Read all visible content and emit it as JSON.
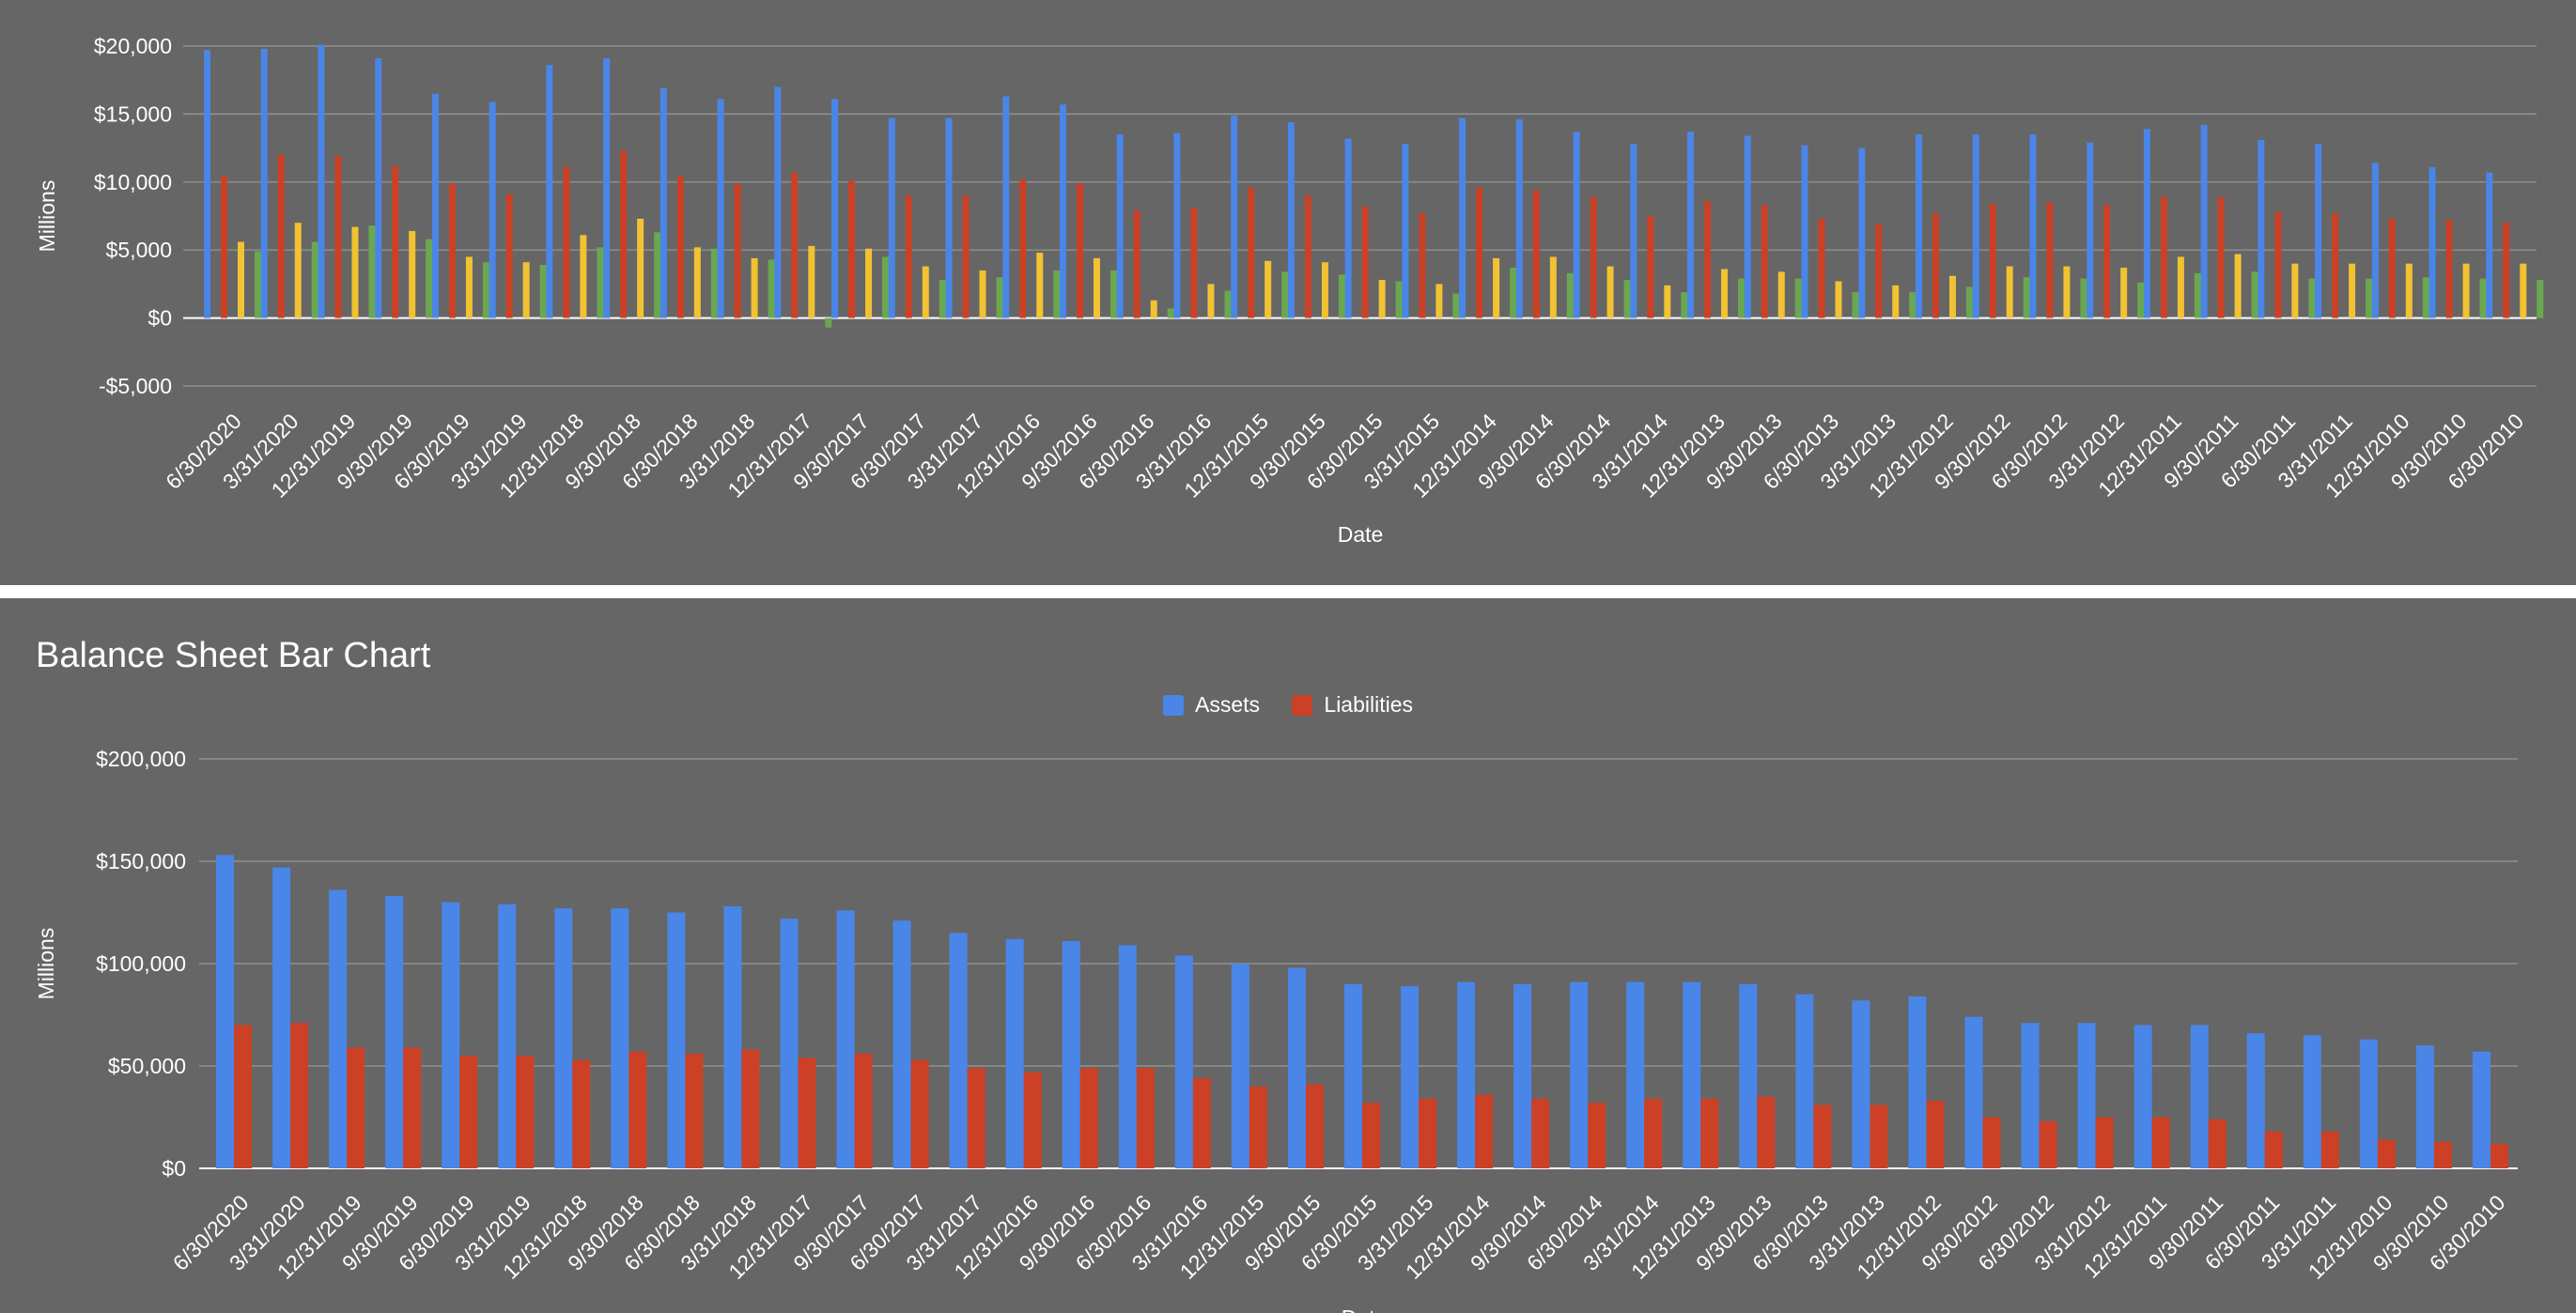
{
  "chart_data": [
    {
      "type": "bar",
      "title": "",
      "xlabel": "Date",
      "ylabel": "Millions",
      "ylim": [
        -5000,
        20000
      ],
      "yticks": [
        {
          "value": 20000,
          "label": "$20,000"
        },
        {
          "value": 15000,
          "label": "$15,000"
        },
        {
          "value": 10000,
          "label": "$10,000"
        },
        {
          "value": 5000,
          "label": "$5,000"
        },
        {
          "value": 0,
          "label": "$0"
        },
        {
          "value": -5000,
          "label": "-$5,000"
        }
      ],
      "grid": true,
      "legend": "none",
      "categories": [
        "6/30/2020",
        "3/31/2020",
        "12/31/2019",
        "9/30/2019",
        "6/30/2019",
        "3/31/2019",
        "12/31/2018",
        "9/30/2018",
        "6/30/2018",
        "3/31/2018",
        "12/31/2017",
        "9/30/2017",
        "6/30/2017",
        "3/31/2017",
        "12/31/2016",
        "9/30/2016",
        "6/30/2016",
        "3/31/2016",
        "12/31/2015",
        "9/30/2015",
        "6/30/2015",
        "3/31/2015",
        "12/31/2014",
        "9/30/2014",
        "6/30/2014",
        "3/31/2014",
        "12/31/2013",
        "9/30/2013",
        "6/30/2013",
        "3/31/2013",
        "12/31/2012",
        "9/30/2012",
        "6/30/2012",
        "3/31/2012",
        "12/31/2011",
        "9/30/2011",
        "6/30/2011",
        "3/31/2011",
        "12/31/2010",
        "9/30/2010",
        "6/30/2010"
      ],
      "series": [
        {
          "color": "#4a86e8",
          "values": [
            19700,
            19800,
            20100,
            19100,
            16500,
            15900,
            18600,
            19100,
            16900,
            16100,
            17000,
            16100,
            14700,
            14700,
            16300,
            15700,
            13500,
            13600,
            14900,
            14400,
            13200,
            12800,
            14700,
            14600,
            13700,
            12800,
            13700,
            13400,
            12700,
            12500,
            13500,
            13500,
            13500,
            12900,
            13900,
            14200,
            13100,
            12800,
            11400,
            11100,
            10700
          ]
        },
        {
          "color": "#cc4125",
          "values": [
            10400,
            12000,
            11900,
            11200,
            9900,
            9100,
            11100,
            12300,
            10400,
            9900,
            10700,
            10100,
            9000,
            9000,
            10200,
            9900,
            7900,
            8100,
            9600,
            9000,
            8200,
            7700,
            9600,
            9400,
            8900,
            7500,
            8600,
            8300,
            7300,
            6900,
            7700,
            8400,
            8500,
            8300,
            8900,
            8900,
            7800,
            7700,
            7300,
            7200,
            7000
          ]
        },
        {
          "color": "#f1c232",
          "values": [
            5600,
            7000,
            6700,
            6400,
            4500,
            4100,
            6100,
            7300,
            5200,
            4400,
            5300,
            5100,
            3800,
            3500,
            4800,
            4400,
            1300,
            2500,
            4200,
            4100,
            2800,
            2500,
            4400,
            4500,
            3800,
            2400,
            3600,
            3400,
            2700,
            2400,
            3100,
            3800,
            3800,
            3700,
            4500,
            4700,
            4000,
            4000,
            4000,
            4000,
            4000
          ]
        },
        {
          "color": "#6aa84f",
          "values": [
            4900,
            5600,
            6800,
            5800,
            4100,
            3900,
            5200,
            6300,
            5100,
            4300,
            -700,
            4500,
            2800,
            3000,
            3500,
            3500,
            700,
            2000,
            3400,
            3200,
            2700,
            1800,
            3700,
            3300,
            2800,
            1900,
            2900,
            2900,
            1900,
            1900,
            2300,
            3000,
            2900,
            2600,
            3300,
            3400,
            2900,
            2900,
            3000,
            2900,
            2800
          ]
        }
      ]
    },
    {
      "type": "bar",
      "title": "Balance Sheet Bar Chart",
      "xlabel": "Date",
      "ylabel": "Millions",
      "ylim": [
        0,
        200000
      ],
      "yticks": [
        {
          "value": 200000,
          "label": "$200,000"
        },
        {
          "value": 150000,
          "label": "$150,000"
        },
        {
          "value": 100000,
          "label": "$100,000"
        },
        {
          "value": 50000,
          "label": "$50,000"
        },
        {
          "value": 0,
          "label": "$0"
        }
      ],
      "grid": true,
      "legend": "top-center",
      "categories": [
        "6/30/2020",
        "3/31/2020",
        "12/31/2019",
        "9/30/2019",
        "6/30/2019",
        "3/31/2019",
        "12/31/2018",
        "9/30/2018",
        "6/30/2018",
        "3/31/2018",
        "12/31/2017",
        "9/30/2017",
        "6/30/2017",
        "3/31/2017",
        "12/31/2016",
        "9/30/2016",
        "6/30/2016",
        "3/31/2016",
        "12/31/2015",
        "9/30/2015",
        "6/30/2015",
        "3/31/2015",
        "12/31/2014",
        "9/30/2014",
        "6/30/2014",
        "3/31/2014",
        "12/31/2013",
        "9/30/2013",
        "6/30/2013",
        "3/31/2013",
        "12/31/2012",
        "9/30/2012",
        "6/30/2012",
        "3/31/2012",
        "12/31/2011",
        "9/30/2011",
        "6/30/2011",
        "3/31/2011",
        "12/31/2010",
        "9/30/2010",
        "6/30/2010"
      ],
      "series": [
        {
          "name": "Assets",
          "color": "#4a86e8",
          "values": [
            153000,
            147000,
            136000,
            133000,
            130000,
            129000,
            127000,
            127000,
            125000,
            128000,
            122000,
            126000,
            121000,
            115000,
            112000,
            111000,
            109000,
            104000,
            100000,
            98000,
            90000,
            89000,
            91000,
            90000,
            91000,
            91000,
            91000,
            90000,
            85000,
            82000,
            84000,
            74000,
            71000,
            71000,
            70000,
            70000,
            66000,
            65000,
            63000,
            60000,
            57000
          ]
        },
        {
          "name": "Liabilities",
          "color": "#cc4125",
          "values": [
            70000,
            71000,
            59000,
            59000,
            55000,
            55000,
            53000,
            57000,
            56000,
            58000,
            54000,
            56000,
            53000,
            49000,
            47000,
            49000,
            49000,
            44000,
            40000,
            41000,
            32000,
            34000,
            36000,
            34000,
            32000,
            34000,
            34000,
            35000,
            31000,
            31000,
            33000,
            25000,
            23000,
            25000,
            25000,
            24000,
            18000,
            18000,
            14000,
            13000,
            12000
          ]
        }
      ]
    }
  ]
}
